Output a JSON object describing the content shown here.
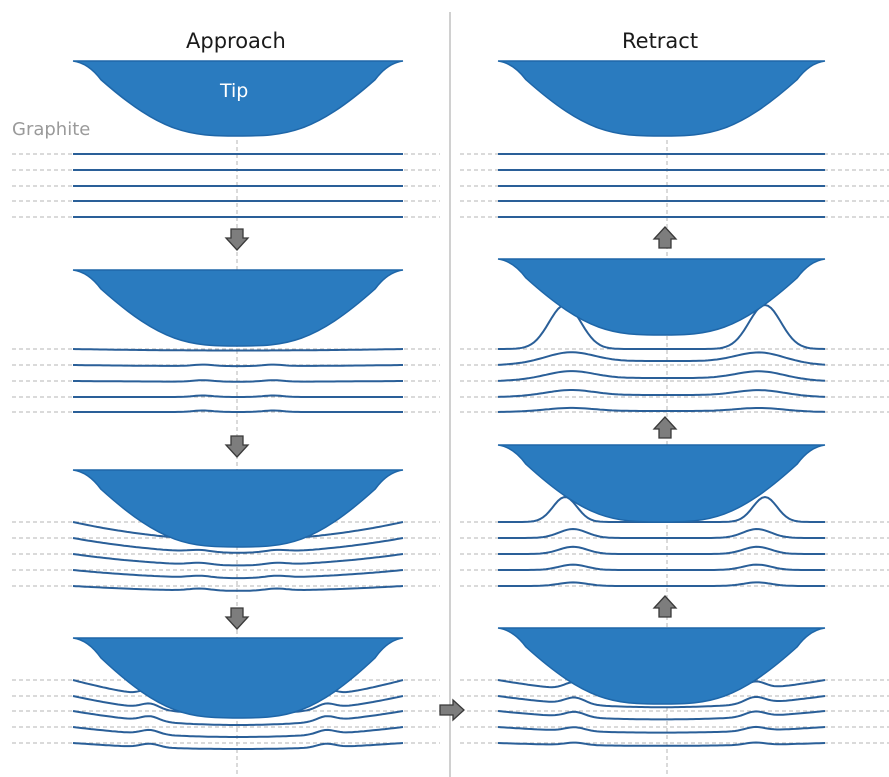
{
  "labels": {
    "approach": "Approach",
    "retract": "Retract",
    "tip": "Tip",
    "graphite": "Graphite"
  },
  "colors": {
    "tip_fill": "#2a7bbf",
    "tip_stroke": "#1e66a8",
    "layer": "#2a5f98",
    "guide": "#b4b4b4",
    "arrow_fill": "#7d7d7d",
    "arrow_stroke": "#3a3a3a",
    "divider": "#b0b0b0"
  },
  "icons": [
    "arrow-down-icon",
    "arrow-up-icon",
    "arrow-right-icon"
  ],
  "panels": {
    "approach": {
      "stages": [
        {
          "name": "approach-stage-1",
          "state": "tip above graphite, layers flat"
        },
        {
          "name": "approach-stage-2",
          "state": "tip touches top layer"
        },
        {
          "name": "approach-stage-3",
          "state": "tip indents, layers bend"
        },
        {
          "name": "approach-stage-4",
          "state": "tip pressed in, layers deformed"
        }
      ]
    },
    "retract": {
      "stages": [
        {
          "name": "retract-stage-1",
          "state": "tip detached, layers flat"
        },
        {
          "name": "retract-stage-2",
          "state": "top layer pulled up by tip"
        },
        {
          "name": "retract-stage-3",
          "state": "layers lifted around tip edges"
        },
        {
          "name": "retract-stage-4",
          "state": "layers adhered to tip bottom"
        }
      ]
    }
  }
}
